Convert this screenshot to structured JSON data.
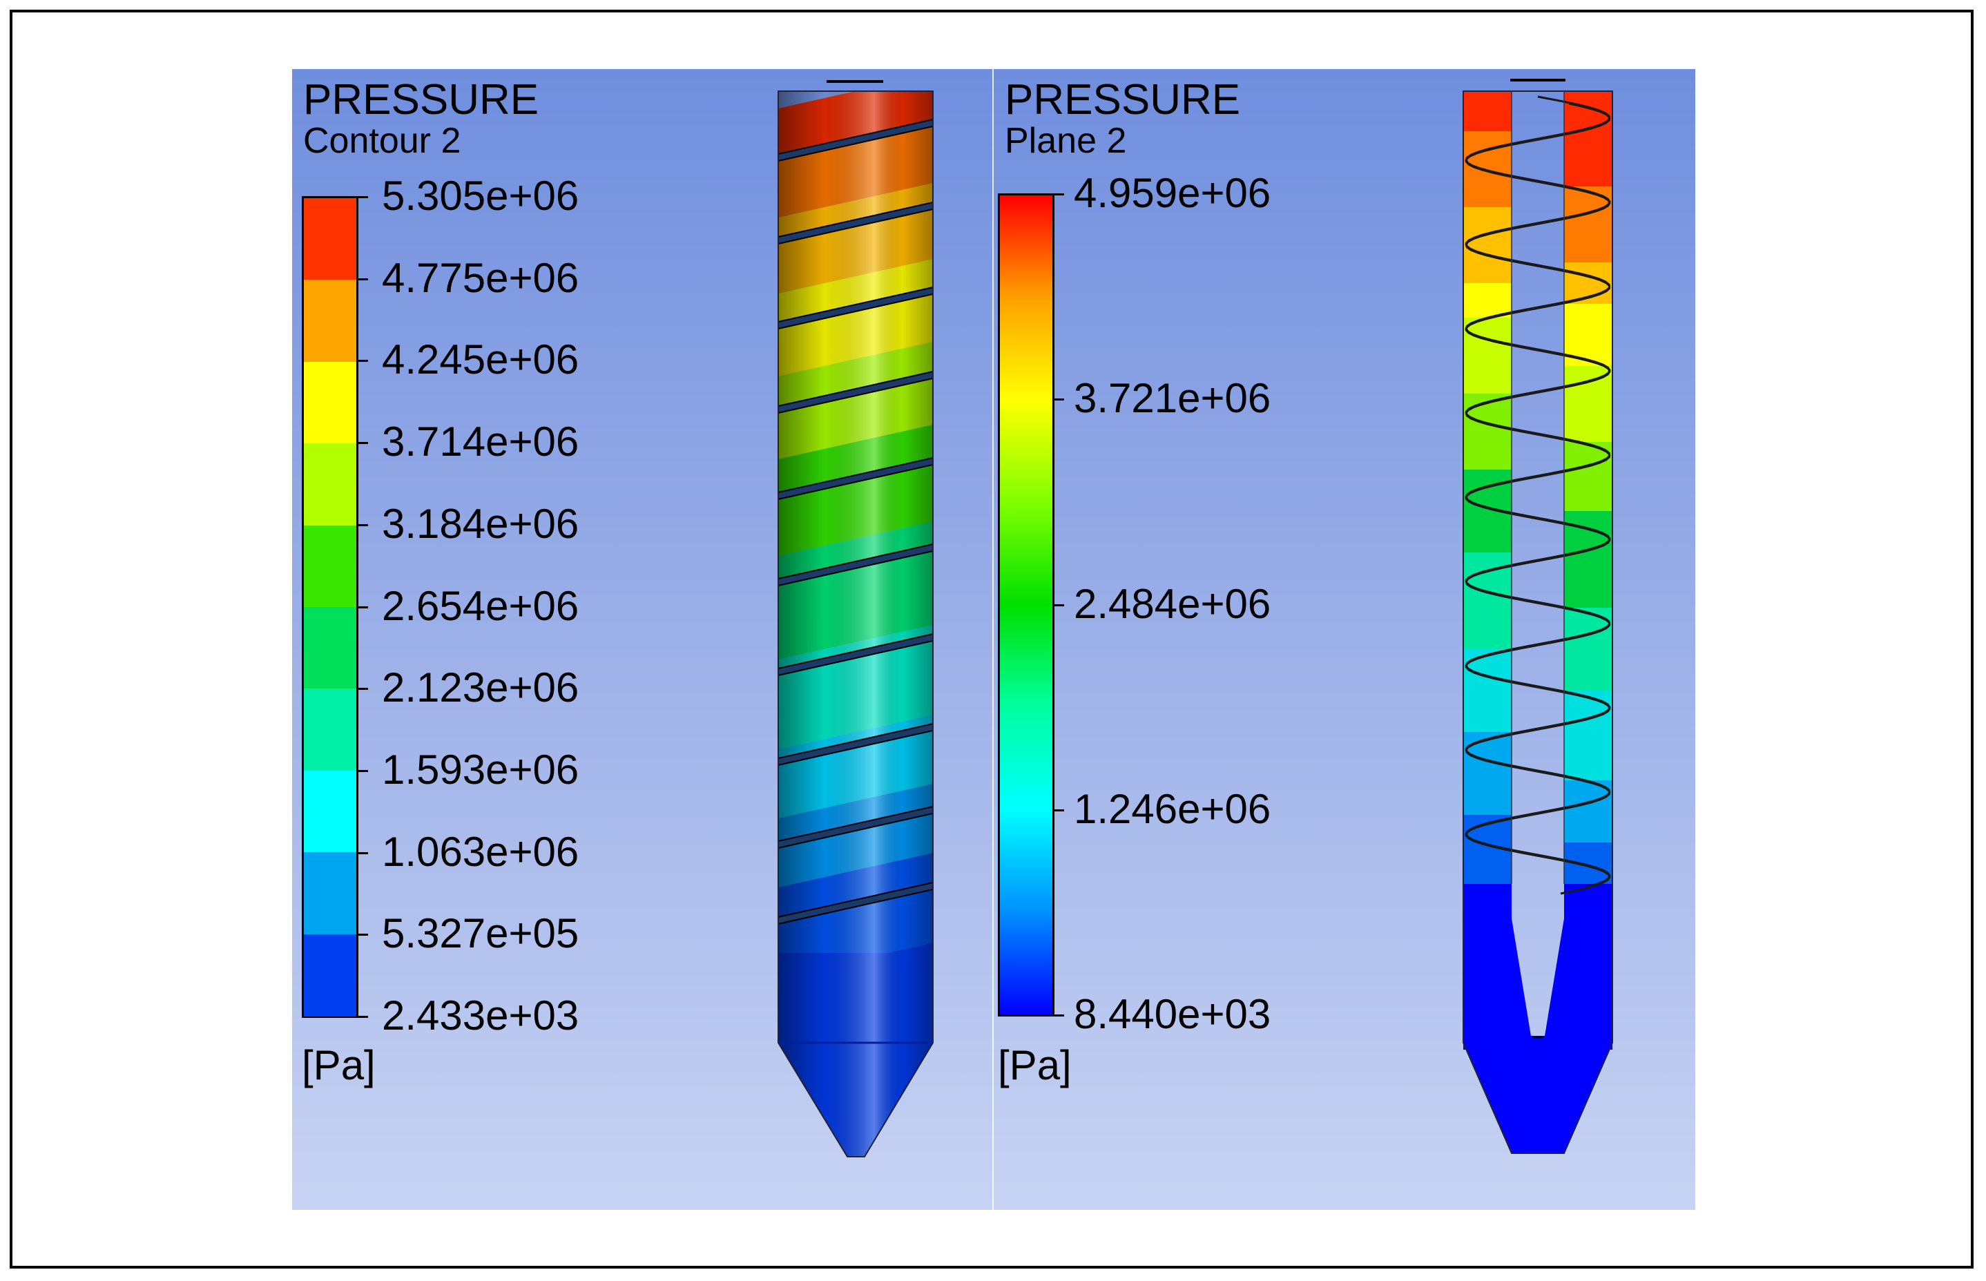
{
  "chart_data": [
    {
      "type": "heatmap",
      "title": "PRESSURE",
      "subtitle": "Contour 2",
      "unit": "[Pa]",
      "scale": "banded",
      "colors": [
        "#ff3300",
        "#ffa500",
        "#ffff00",
        "#b2ff00",
        "#39e600",
        "#00e05a",
        "#00f0a8",
        "#00ffff",
        "#00a5f0",
        "#0040f0"
      ],
      "tick_labels": [
        "5.305e+06",
        "4.775e+06",
        "4.245e+06",
        "3.714e+06",
        "3.184e+06",
        "2.654e+06",
        "2.123e+06",
        "1.593e+06",
        "1.063e+06",
        "5.327e+05",
        "2.433e+03"
      ],
      "range": [
        2433,
        5305000
      ]
    },
    {
      "type": "heatmap",
      "title": "PRESSURE",
      "subtitle": "Plane 2",
      "unit": "[Pa]",
      "scale": "continuous",
      "colors": [
        "#ff0000",
        "#ffa000",
        "#ffff00",
        "#80ff00",
        "#00e000",
        "#00ffa0",
        "#00ffff",
        "#0090ff",
        "#0000ff"
      ],
      "tick_labels": [
        "4.959e+06",
        "3.721e+06",
        "2.484e+06",
        "1.246e+06",
        "8.440e+03"
      ],
      "range": [
        8440,
        4959000
      ]
    }
  ]
}
